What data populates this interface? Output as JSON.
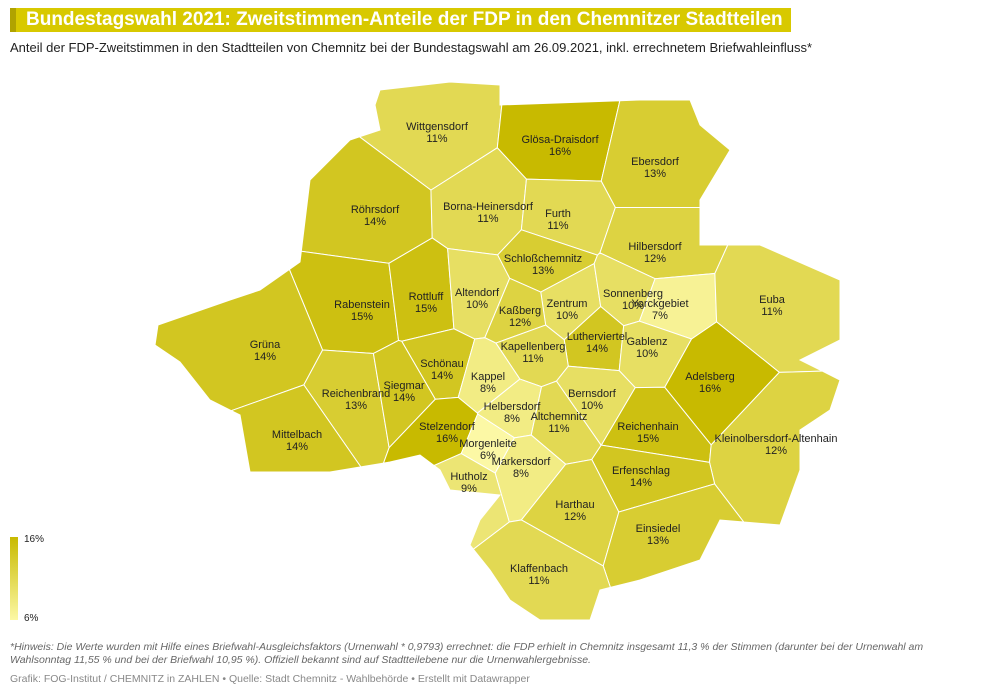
{
  "header": {
    "title": "Bundestagswahl 2021: Zweitstimmen-Anteile der FDP in den Chemnitzer Stadtteilen",
    "subtitle": "Anteil der FDP-Zweitstimmen in den Stadtteilen von Chemnitz bei der Bundestagswahl am 26.09.2021, inkl. errechnetem Briefwahleinfluss*"
  },
  "map": {
    "legend": {
      "max": {
        "value": 16,
        "label": "16%"
      },
      "min": {
        "value": 6,
        "label": "6%"
      }
    },
    "districts": [
      {
        "name": "Wittgensdorf",
        "value": 11,
        "value_label": "11%"
      },
      {
        "name": "Glösa-Draisdorf",
        "value": 16,
        "value_label": "16%"
      },
      {
        "name": "Ebersdorf",
        "value": 13,
        "value_label": "13%"
      },
      {
        "name": "Röhrsdorf",
        "value": 14,
        "value_label": "14%"
      },
      {
        "name": "Borna-Heinersdorf",
        "value": 11,
        "value_label": "11%"
      },
      {
        "name": "Furth",
        "value": 11,
        "value_label": "11%"
      },
      {
        "name": "Hilbersdorf",
        "value": 12,
        "value_label": "12%"
      },
      {
        "name": "Schloßchemnitz",
        "value": 13,
        "value_label": "13%"
      },
      {
        "name": "Rabenstein",
        "value": 15,
        "value_label": "15%"
      },
      {
        "name": "Rottluff",
        "value": 15,
        "value_label": "15%"
      },
      {
        "name": "Altendorf",
        "value": 10,
        "value_label": "10%"
      },
      {
        "name": "Zentrum",
        "value": 10,
        "value_label": "10%"
      },
      {
        "name": "Sonnenberg",
        "value": 10,
        "value_label": "10%"
      },
      {
        "name": "Yorckgebiet",
        "value": 7,
        "value_label": "7%"
      },
      {
        "name": "Euba",
        "value": 11,
        "value_label": "11%"
      },
      {
        "name": "Kaßberg",
        "value": 12,
        "value_label": "12%"
      },
      {
        "name": "Grüna",
        "value": 14,
        "value_label": "14%"
      },
      {
        "name": "Lutherviertel",
        "value": 14,
        "value_label": "14%"
      },
      {
        "name": "Gablenz",
        "value": 10,
        "value_label": "10%"
      },
      {
        "name": "Schönau",
        "value": 14,
        "value_label": "14%"
      },
      {
        "name": "Kapellenberg",
        "value": 11,
        "value_label": "11%"
      },
      {
        "name": "Kappel",
        "value": 8,
        "value_label": "8%"
      },
      {
        "name": "Adelsberg",
        "value": 16,
        "value_label": "16%"
      },
      {
        "name": "Reichenbrand",
        "value": 13,
        "value_label": "13%"
      },
      {
        "name": "Siegmar",
        "value": 14,
        "value_label": "14%"
      },
      {
        "name": "Bernsdorf",
        "value": 10,
        "value_label": "10%"
      },
      {
        "name": "Helbersdorf",
        "value": 8,
        "value_label": "8%"
      },
      {
        "name": "Mittelbach",
        "value": 14,
        "value_label": "14%"
      },
      {
        "name": "Stelzendorf",
        "value": 16,
        "value_label": "16%"
      },
      {
        "name": "Altchemnitz",
        "value": 11,
        "value_label": "11%"
      },
      {
        "name": "Reichenhain",
        "value": 15,
        "value_label": "15%"
      },
      {
        "name": "Kleinolbersdorf-Altenhain",
        "value": 12,
        "value_label": "12%"
      },
      {
        "name": "Morgenleite",
        "value": 6,
        "value_label": "6%"
      },
      {
        "name": "Markersdorf",
        "value": 8,
        "value_label": "8%"
      },
      {
        "name": "Erfenschlag",
        "value": 14,
        "value_label": "14%"
      },
      {
        "name": "Hutholz",
        "value": 9,
        "value_label": "9%"
      },
      {
        "name": "Harthau",
        "value": 12,
        "value_label": "12%"
      },
      {
        "name": "Einsiedel",
        "value": 13,
        "value_label": "13%"
      },
      {
        "name": "Klaffenbach",
        "value": 11,
        "value_label": "11%"
      }
    ]
  },
  "footer": {
    "note": "*Hinweis: Die Werte wurden mit Hilfe eines Briefwahl-Ausgleichsfaktors (Urnenwahl * 0,9793) errechnet: die FDP erhielt in Chemnitz insgesamt 11,3 % der Stimmen (darunter bei der Urnenwahl am Wahlsonntag 11,55 % und bei der Briefwahl 10,95 %). Offiziell bekannt sind auf Stadtteilebene nur die Urnenwahlergebnisse.",
    "credit": "Grafik: FOG-Institut / CHEMNITZ in ZAHLEN • Quelle: Stadt Chemnitz - Wahlbehörde • Erstellt mit Datawrapper"
  }
}
